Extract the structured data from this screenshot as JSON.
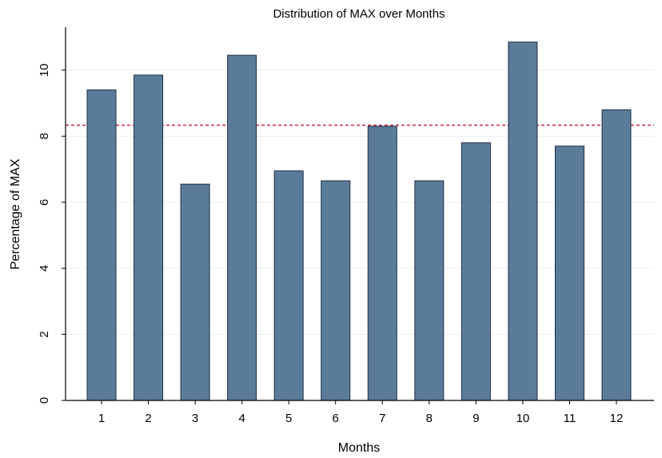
{
  "chart_data": {
    "type": "bar",
    "title": "Distribution of MAX over Months",
    "xlabel": "Months",
    "ylabel": "Percentage of MAX",
    "categories": [
      "1",
      "2",
      "3",
      "4",
      "5",
      "6",
      "7",
      "8",
      "9",
      "10",
      "11",
      "12"
    ],
    "values": [
      9.4,
      9.85,
      6.55,
      10.45,
      6.95,
      6.65,
      8.3,
      6.65,
      7.8,
      10.85,
      7.7,
      8.8
    ],
    "yticks": [
      0,
      2,
      4,
      6,
      8,
      10
    ],
    "ylim": [
      0,
      11.3
    ],
    "reference_line": 8.333,
    "grid": true,
    "legend": "none",
    "colors": {
      "bar": "#5b7b9a",
      "reference_line": "#c8253f",
      "grid": "#e8eef2"
    }
  }
}
